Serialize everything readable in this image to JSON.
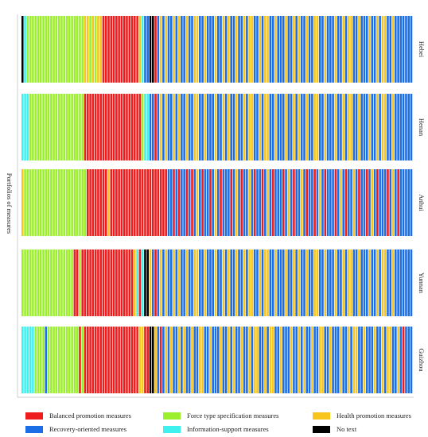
{
  "chart_data": {
    "type": "bar",
    "ylabel": "Portfolios of measures",
    "panels": [
      "Hebei",
      "Henan",
      "Anhui",
      "Yunnan",
      "Guizhou"
    ],
    "categories_count": 150,
    "category_colors": {
      "balanced": "#ee1c1c",
      "force": "#9cef2c",
      "health": "#f8c51c",
      "recovery": "#1c6ee6",
      "info": "#3ef0ee",
      "notext": "#000000"
    },
    "legend": [
      {
        "key": "balanced",
        "label": "Balanced promotion measures"
      },
      {
        "key": "force",
        "label": "Force type specification measures"
      },
      {
        "key": "health",
        "label": "Health promotion measures"
      },
      {
        "key": "recovery",
        "label": "Recovery-oriented measures"
      },
      {
        "key": "info",
        "label": "Information-support measures"
      },
      {
        "key": "notext",
        "label": "No text"
      }
    ],
    "series": [
      {
        "name": "Hebei",
        "pattern": "KIFFFFFFFFFFFFFFFFFFFFFFHHFHFHHBBBBBBBBBBBBBBHIRRKKBRHRHRRHRHRRHRRHHRRHRRRHRRHRHRRHRRHRHHRRHRHHRRHRRRHRRHRHRRHRRHHRRHRRRHRRHRHHRRHRRRHRRHRHHRRHRR"
      },
      {
        "name": "Henan",
        "pattern": "IIIFFFFFFFFFFFFFFFFFFFFFBBBBBBBBBBBBBBBBBBBBBBFIIRRBRHRHRRHRHRRHRRHHRRHRRRHRRHRHRRHRRHRHHRRHRHHRRHRRRHRRHRHRRHRRHHRRHRRRHRRHRHHRRHRRRHRRHRHHRRHRR"
      },
      {
        "name": "Anhui",
        "pattern": "HFFFFFFFFFFFFFFFFFFFFFFFFBBBBBBBBHBBBBBBBBBBBBBBBBBBBBBBRRBRBRRBRBRHRBRRBRHRBRRRBRHRBRRHRBRRBRHRBRRRBRHRBRRHRBRRBRHRBRRRBRHRBRRHRBRRBRHRBRRRBRHRB"
      },
      {
        "name": "Yunnan",
        "pattern": "FFFFFFFFFFFFFFFFFFFFBBFBBBBBBBBBBBBBBBBBBBBHIBIKKHRBRHRHRRHRHRRHRRHHRRHRRRHRRHRHRRHRRHRHHRRHRHHRRHRRRHRRHRHRRHRRHHRRHRRRHRRHRHHRRHRRRHRRHRHHRRHRR"
      },
      {
        "name": "Guizhou",
        "pattern": "IIIIIFFFFRFFFFFFFFFFFFBFBBBBBBBBBBBBBBBBBBBBBHHBBKKHRBRHRHRRHRHRRHRRHHRRHRRRHRRHRHRRHRRHRHHRRHRHHRRHRRRHRRHRHRRHRRHHRRHRRRHRRHRHHRRHRRRHRRHRHHRRHRB"
      }
    ]
  }
}
